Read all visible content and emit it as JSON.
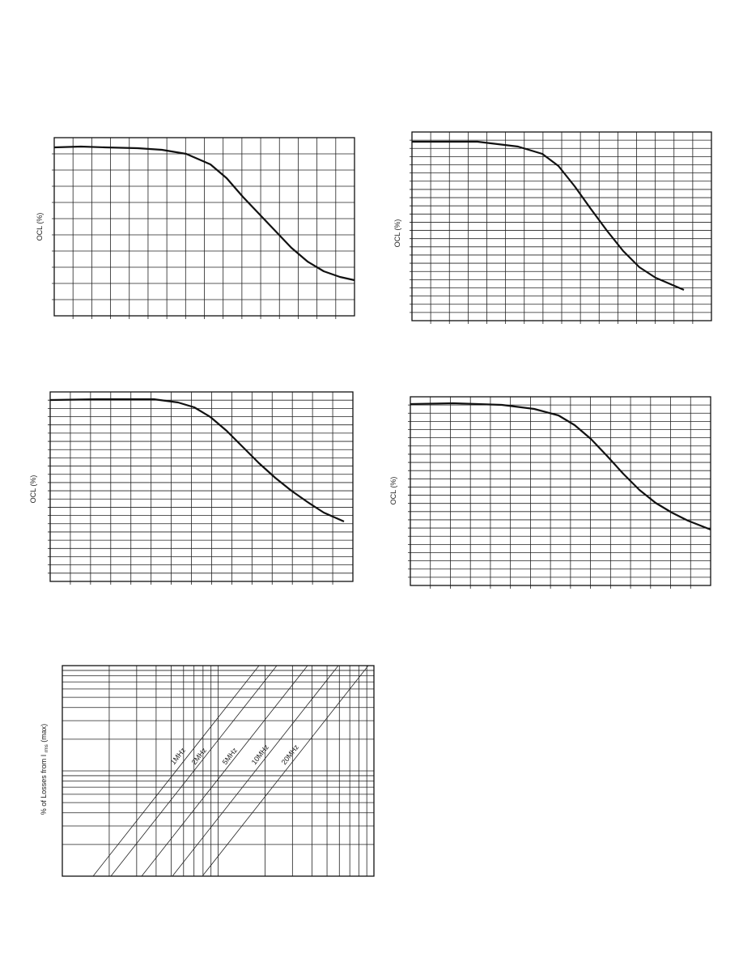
{
  "charts": [
    {
      "y_label": "OCL (%)"
    },
    {
      "y_label": "OCL (%)"
    },
    {
      "y_label": "OCL (%)"
    },
    {
      "y_label": "OCL (%)"
    }
  ],
  "loss_chart": {
    "y_label": [
      "% of Losses from I",
      "rms",
      "(max)"
    ],
    "curve_labels": [
      "1MHz",
      "2MHz",
      "5MHz",
      "10MHz",
      "20MHz"
    ]
  }
}
